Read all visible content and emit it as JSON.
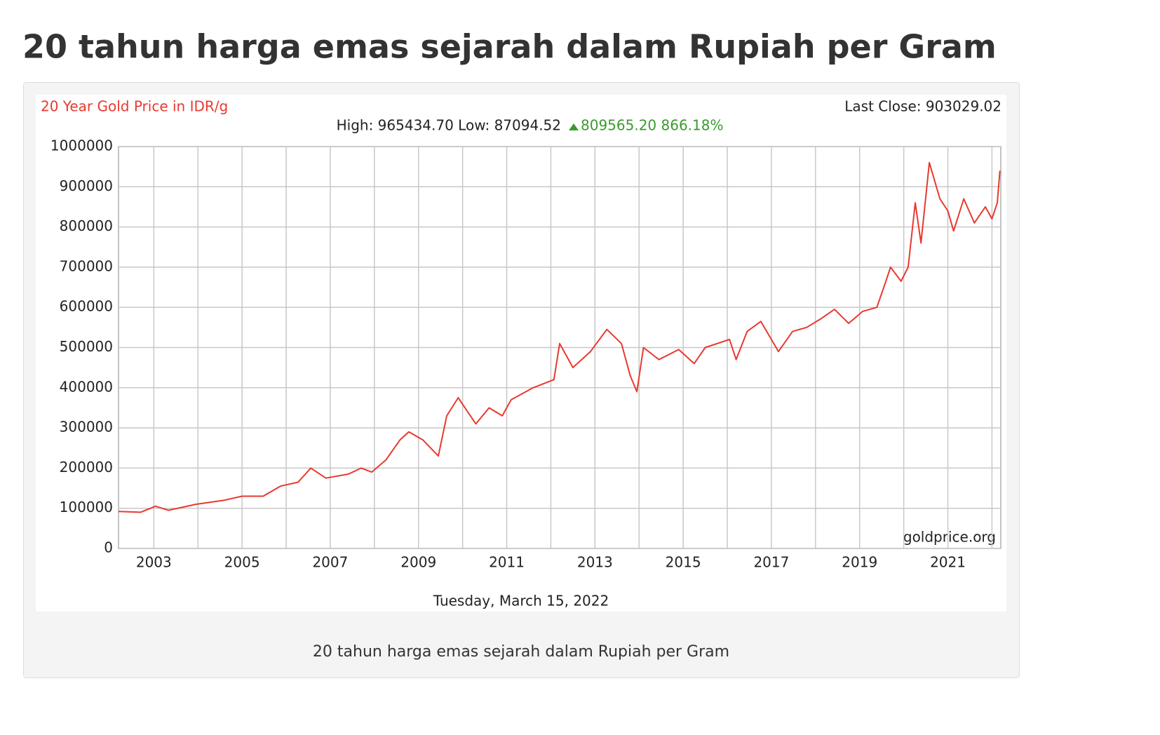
{
  "page": {
    "title": "20 tahun harga emas sejarah dalam Rupiah per Gram",
    "caption": "20 tahun harga emas sejarah dalam Rupiah per Gram"
  },
  "chart_data": {
    "type": "line",
    "title": "20 Year Gold Price in IDR/g",
    "last_close": "Last Close: 903029.02",
    "stats": "High: 965434.70 Low: 87094.52",
    "change": "809565.20 866.18%",
    "source": "goldprice.org",
    "date": "Tuesday, March 15, 2022",
    "color": "#e8392f",
    "x": [
      2002.2,
      2002.7,
      2003.04,
      2003.33,
      2003.96,
      2004.6,
      2005.0,
      2005.48,
      2005.87,
      2006.27,
      2006.56,
      2006.9,
      2007.41,
      2007.7,
      2007.94,
      2008.26,
      2008.58,
      2008.78,
      2009.1,
      2009.45,
      2009.64,
      2009.9,
      2010.3,
      2010.6,
      2010.9,
      2011.1,
      2011.6,
      2012.07,
      2012.2,
      2012.5,
      2012.9,
      2013.27,
      2013.6,
      2013.8,
      2013.95,
      2014.1,
      2014.45,
      2014.9,
      2015.25,
      2015.5,
      2016.05,
      2016.2,
      2016.45,
      2016.76,
      2017.16,
      2017.48,
      2017.8,
      2018.1,
      2018.43,
      2018.75,
      2019.07,
      2019.39,
      2019.58,
      2019.7,
      2019.94,
      2020.1,
      2020.26,
      2020.39,
      2020.58,
      2020.82,
      2021.0,
      2021.13,
      2021.36,
      2021.6,
      2021.85,
      2022.0,
      2022.12,
      2022.18
    ],
    "values": [
      92000,
      90000,
      105000,
      95000,
      110000,
      120000,
      130000,
      130000,
      155000,
      165000,
      200000,
      175000,
      185000,
      200000,
      190000,
      220000,
      270000,
      290000,
      270000,
      230000,
      330000,
      375000,
      310000,
      350000,
      330000,
      370000,
      400000,
      420000,
      510000,
      450000,
      490000,
      545000,
      510000,
      430000,
      390000,
      500000,
      470000,
      495000,
      460000,
      500000,
      520000,
      470000,
      540000,
      565000,
      490000,
      540000,
      550000,
      570000,
      595000,
      560000,
      590000,
      600000,
      660000,
      700000,
      665000,
      700000,
      860000,
      760000,
      960000,
      870000,
      840000,
      790000,
      870000,
      810000,
      850000,
      820000,
      860000,
      940000
    ],
    "xlim": [
      2002.2,
      2022.2
    ],
    "xticks": [
      2003,
      2005,
      2007,
      2009,
      2011,
      2013,
      2015,
      2017,
      2019,
      2021
    ],
    "xgrid": [
      2004,
      2006,
      2008,
      2010,
      2012,
      2014,
      2016,
      2018,
      2020,
      2022
    ],
    "ylim": [
      0,
      1000000
    ],
    "yticks": [
      0,
      100000,
      200000,
      300000,
      400000,
      500000,
      600000,
      700000,
      800000,
      900000,
      1000000
    ],
    "grid": true
  }
}
